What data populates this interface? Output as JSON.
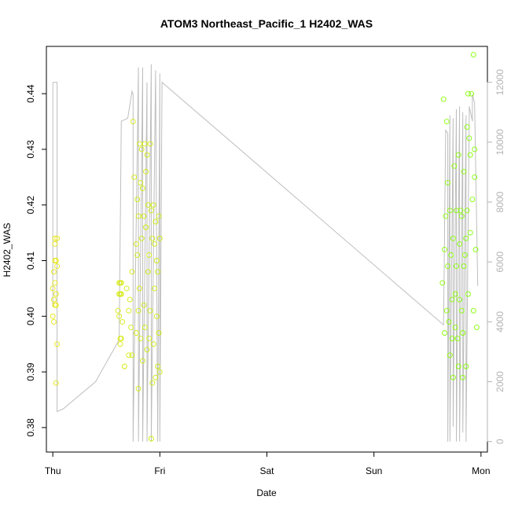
{
  "chart_data": {
    "type": "scatter",
    "title": "ATOM3 Northeast_Pacific_1 H2402_WAS",
    "xlabel": "Date",
    "ylabel": "H2402_WAS",
    "x_ticks": [
      "Thu",
      "Fri",
      "Sat",
      "Sun",
      "Mon"
    ],
    "x_range_days": [
      -0.06,
      4.06
    ],
    "ylim": [
      0.3756,
      0.4485
    ],
    "y_ticks": [
      0.38,
      0.39,
      0.4,
      0.41,
      0.42,
      0.43,
      0.44
    ],
    "y_ticks_right": [
      0,
      2000,
      4000,
      6000,
      8000,
      10000,
      12000
    ],
    "y_right_range": [
      -350,
      13200
    ],
    "colors": {
      "low": "#e6e60f",
      "high": "#7fff00",
      "altitude_line": "#bebebe",
      "frame": "#000000"
    },
    "points_series": [
      {
        "x": [
          0.0,
          0.0,
          0.01,
          0.01,
          0.01,
          0.02,
          0.02,
          0.02,
          0.02,
          0.02,
          0.03,
          0.03,
          0.03,
          0.03,
          0.04,
          0.04,
          0.04
        ],
        "y": [
          0.4,
          0.405,
          0.408,
          0.399,
          0.403,
          0.41,
          0.406,
          0.402,
          0.414,
          0.413,
          0.404,
          0.388,
          0.402,
          0.41,
          0.414,
          0.409,
          0.395
        ]
      },
      {
        "x": [
          0.61,
          0.62,
          0.62,
          0.62,
          0.63,
          0.63,
          0.63,
          0.63,
          0.64,
          0.64,
          0.64,
          0.65,
          0.67,
          0.69,
          0.71,
          0.71,
          0.72,
          0.73,
          0.74,
          0.74,
          0.75,
          0.76
        ],
        "y": [
          0.401,
          0.4,
          0.404,
          0.406,
          0.396,
          0.395,
          0.404,
          0.406,
          0.396,
          0.404,
          0.406,
          0.399,
          0.391,
          0.405,
          0.393,
          0.401,
          0.403,
          0.398,
          0.408,
          0.393,
          0.435,
          0.425
        ]
      },
      {
        "x": [
          0.78,
          0.78,
          0.79,
          0.79,
          0.8,
          0.8,
          0.8,
          0.81,
          0.81,
          0.82,
          0.82,
          0.83,
          0.83,
          0.84,
          0.84,
          0.85,
          0.85,
          0.86,
          0.86,
          0.87,
          0.87,
          0.88,
          0.88,
          0.89,
          0.89,
          0.9,
          0.9,
          0.91,
          0.91,
          0.92,
          0.92,
          0.93,
          0.93,
          0.94,
          0.94,
          0.95,
          0.95,
          0.96,
          0.96,
          0.97,
          0.97,
          0.98,
          0.98,
          0.99,
          0.99,
          1.0,
          1.0
        ],
        "y": [
          0.413,
          0.397,
          0.421,
          0.411,
          0.418,
          0.401,
          0.387,
          0.431,
          0.405,
          0.424,
          0.396,
          0.414,
          0.43,
          0.423,
          0.392,
          0.418,
          0.402,
          0.431,
          0.398,
          0.416,
          0.426,
          0.429,
          0.394,
          0.42,
          0.408,
          0.411,
          0.396,
          0.431,
          0.401,
          0.419,
          0.378,
          0.414,
          0.388,
          0.42,
          0.395,
          0.413,
          0.405,
          0.417,
          0.389,
          0.4,
          0.41,
          0.391,
          0.408,
          0.418,
          0.397,
          0.414,
          0.39
        ]
      },
      {
        "x": [
          3.64,
          3.65,
          3.66,
          3.66,
          3.67,
          3.68,
          3.68,
          3.69,
          3.69,
          3.7,
          3.71,
          3.71,
          3.72,
          3.73,
          3.73,
          3.74,
          3.74,
          3.75,
          3.76,
          3.76,
          3.77,
          3.77,
          3.78,
          3.79,
          3.79,
          3.8,
          3.8,
          3.81,
          3.82,
          3.82,
          3.83,
          3.83,
          3.84,
          3.84,
          3.85,
          3.86,
          3.86,
          3.87,
          3.87,
          3.88,
          3.88,
          3.89,
          3.9,
          3.9,
          3.91,
          3.92,
          3.93,
          3.93,
          3.94,
          3.94,
          3.95,
          3.96
        ],
        "y": [
          0.406,
          0.439,
          0.412,
          0.397,
          0.418,
          0.435,
          0.401,
          0.409,
          0.424,
          0.399,
          0.393,
          0.419,
          0.411,
          0.403,
          0.396,
          0.414,
          0.389,
          0.427,
          0.404,
          0.398,
          0.419,
          0.409,
          0.396,
          0.429,
          0.391,
          0.413,
          0.403,
          0.419,
          0.418,
          0.401,
          0.389,
          0.397,
          0.426,
          0.409,
          0.411,
          0.414,
          0.391,
          0.419,
          0.434,
          0.404,
          0.44,
          0.432,
          0.429,
          0.415,
          0.44,
          0.421,
          0.447,
          0.401,
          0.43,
          0.425,
          0.412,
          0.398
        ]
      }
    ],
    "altitude_line": {
      "x": [
        0.0,
        0.0,
        0.04,
        0.04,
        0.1,
        0.4,
        0.62,
        0.64,
        0.7,
        0.74,
        0.75,
        0.75,
        0.8,
        0.8,
        0.84,
        0.84,
        0.88,
        0.88,
        0.92,
        0.92,
        0.96,
        0.98,
        1.0,
        1.0,
        1.02,
        1.02,
        3.65,
        3.67,
        3.69,
        3.69,
        3.71,
        3.71,
        3.74,
        3.74,
        3.77,
        3.77,
        3.8,
        3.8,
        3.83,
        3.83,
        3.86,
        3.86,
        3.89,
        3.89,
        3.92,
        3.92,
        3.94,
        3.97
      ],
      "y": [
        4500,
        12000,
        12000,
        1000,
        1100,
        2000,
        3400,
        10700,
        10800,
        11700,
        11600,
        0,
        12500,
        0,
        12500,
        0,
        12000,
        0,
        12600,
        0,
        12400,
        0,
        12300,
        0,
        12000,
        12000,
        3900,
        10400,
        10300,
        0,
        10900,
        0,
        10800,
        500,
        11100,
        0,
        11200,
        0,
        11000,
        300,
        10900,
        0,
        11000,
        11200,
        10700,
        11600,
        11300,
        5200
      ]
    }
  }
}
